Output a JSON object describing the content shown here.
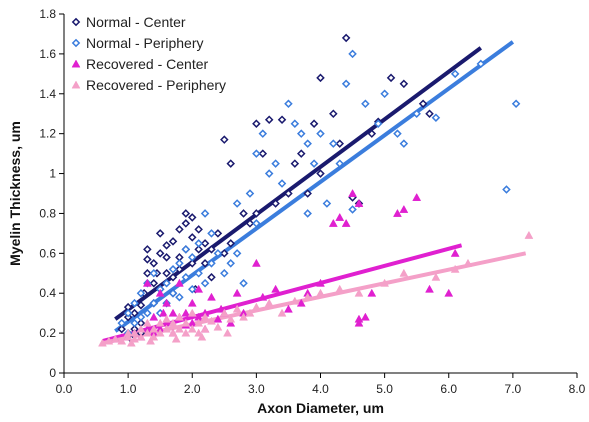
{
  "chart_data": {
    "type": "scatter",
    "title": "",
    "xlabel": "Axon Diameter, um",
    "ylabel": "Myelin Thickness, um",
    "xlim": [
      0,
      8
    ],
    "ylim": [
      0,
      1.8
    ],
    "x_ticks": [
      "0.0",
      "1.0",
      "2.0",
      "3.0",
      "4.0",
      "5.0",
      "6.0",
      "7.0",
      "8.0"
    ],
    "y_ticks": [
      "0",
      "0.2",
      "0.4",
      "0.6",
      "0.8",
      "1",
      "1.2",
      "1.4",
      "1.6",
      "1.8"
    ],
    "grid": false,
    "legend_position": "top-left",
    "series": [
      {
        "name": "Normal - Center",
        "color": "#1a1a6e",
        "marker": "diamond",
        "trendline": {
          "x": [
            0.8,
            6.5
          ],
          "y": [
            0.27,
            1.63
          ]
        },
        "points": [
          [
            0.9,
            0.22
          ],
          [
            1.0,
            0.28
          ],
          [
            1.0,
            0.33
          ],
          [
            1.1,
            0.22
          ],
          [
            1.1,
            0.3
          ],
          [
            1.2,
            0.25
          ],
          [
            1.2,
            0.34
          ],
          [
            1.3,
            0.5
          ],
          [
            1.3,
            0.57
          ],
          [
            1.3,
            0.62
          ],
          [
            1.4,
            0.45
          ],
          [
            1.4,
            0.55
          ],
          [
            1.5,
            0.6
          ],
          [
            1.5,
            0.7
          ],
          [
            1.5,
            0.42
          ],
          [
            1.6,
            0.5
          ],
          [
            1.6,
            0.64
          ],
          [
            1.6,
            0.58
          ],
          [
            1.7,
            0.48
          ],
          [
            1.7,
            0.66
          ],
          [
            1.8,
            0.52
          ],
          [
            1.8,
            0.72
          ],
          [
            1.8,
            0.58
          ],
          [
            1.9,
            0.62
          ],
          [
            1.9,
            0.75
          ],
          [
            1.9,
            0.8
          ],
          [
            2.0,
            0.55
          ],
          [
            2.0,
            0.68
          ],
          [
            2.0,
            0.78
          ],
          [
            2.1,
            0.62
          ],
          [
            2.1,
            0.72
          ],
          [
            2.2,
            0.65
          ],
          [
            2.2,
            0.55
          ],
          [
            2.3,
            0.62
          ],
          [
            2.4,
            0.7
          ],
          [
            2.5,
            0.6
          ],
          [
            2.5,
            1.17
          ],
          [
            2.6,
            1.05
          ],
          [
            2.6,
            0.65
          ],
          [
            2.8,
            0.8
          ],
          [
            2.9,
            0.75
          ],
          [
            3.0,
            0.8
          ],
          [
            3.0,
            1.25
          ],
          [
            3.1,
            1.1
          ],
          [
            3.2,
            1.27
          ],
          [
            3.3,
            0.85
          ],
          [
            3.4,
            1.27
          ],
          [
            3.5,
            0.9
          ],
          [
            3.6,
            1.05
          ],
          [
            3.7,
            1.1
          ],
          [
            3.8,
            0.9
          ],
          [
            3.9,
            1.25
          ],
          [
            4.0,
            1.48
          ],
          [
            4.0,
            1.0
          ],
          [
            4.2,
            1.3
          ],
          [
            4.3,
            1.15
          ],
          [
            4.4,
            1.68
          ],
          [
            4.5,
            0.88
          ],
          [
            4.6,
            0.85
          ],
          [
            4.8,
            1.2
          ],
          [
            4.9,
            1.26
          ],
          [
            5.1,
            1.48
          ],
          [
            5.3,
            1.45
          ],
          [
            5.6,
            1.35
          ],
          [
            5.7,
            1.3
          ],
          [
            1.05,
            0.17
          ],
          [
            1.2,
            0.2
          ],
          [
            1.25,
            0.4
          ],
          [
            1.4,
            0.35
          ],
          [
            1.7,
            0.4
          ],
          [
            2.05,
            0.42
          ],
          [
            2.3,
            0.48
          ],
          [
            1.45,
            0.5
          ]
        ]
      },
      {
        "name": "Normal - Periphery",
        "color": "#3b7ddd",
        "marker": "diamond",
        "trendline": {
          "x": [
            0.8,
            7.0
          ],
          "y": [
            0.21,
            1.66
          ]
        },
        "points": [
          [
            0.9,
            0.25
          ],
          [
            1.0,
            0.2
          ],
          [
            1.0,
            0.3
          ],
          [
            1.1,
            0.25
          ],
          [
            1.1,
            0.35
          ],
          [
            1.2,
            0.28
          ],
          [
            1.2,
            0.4
          ],
          [
            1.3,
            0.3
          ],
          [
            1.3,
            0.45
          ],
          [
            1.4,
            0.35
          ],
          [
            1.4,
            0.5
          ],
          [
            1.5,
            0.42
          ],
          [
            1.5,
            0.3
          ],
          [
            1.6,
            0.45
          ],
          [
            1.6,
            0.35
          ],
          [
            1.7,
            0.52
          ],
          [
            1.7,
            0.4
          ],
          [
            1.8,
            0.38
          ],
          [
            1.8,
            0.55
          ],
          [
            1.9,
            0.48
          ],
          [
            1.9,
            0.62
          ],
          [
            2.0,
            0.42
          ],
          [
            2.0,
            0.58
          ],
          [
            2.1,
            0.5
          ],
          [
            2.1,
            0.65
          ],
          [
            2.2,
            0.45
          ],
          [
            2.2,
            0.8
          ],
          [
            2.3,
            0.55
          ],
          [
            2.3,
            0.7
          ],
          [
            2.4,
            0.6
          ],
          [
            2.5,
            0.5
          ],
          [
            2.6,
            0.55
          ],
          [
            2.7,
            0.6
          ],
          [
            2.7,
            0.85
          ],
          [
            2.8,
            0.45
          ],
          [
            2.9,
            0.9
          ],
          [
            3.0,
            1.1
          ],
          [
            3.0,
            0.75
          ],
          [
            3.1,
            1.2
          ],
          [
            3.2,
            1.0
          ],
          [
            3.3,
            1.05
          ],
          [
            3.4,
            0.95
          ],
          [
            3.5,
            1.35
          ],
          [
            3.6,
            1.25
          ],
          [
            3.7,
            1.2
          ],
          [
            3.8,
            1.15
          ],
          [
            3.8,
            0.8
          ],
          [
            3.9,
            1.05
          ],
          [
            4.0,
            1.2
          ],
          [
            4.1,
            0.85
          ],
          [
            4.2,
            1.15
          ],
          [
            4.3,
            1.05
          ],
          [
            4.4,
            1.45
          ],
          [
            4.5,
            1.6
          ],
          [
            4.7,
            1.35
          ],
          [
            4.9,
            1.25
          ],
          [
            5.0,
            1.4
          ],
          [
            5.2,
            1.2
          ],
          [
            5.3,
            1.15
          ],
          [
            5.5,
            1.3
          ],
          [
            5.8,
            1.28
          ],
          [
            6.1,
            1.5
          ],
          [
            6.5,
            1.55
          ],
          [
            6.9,
            0.92
          ],
          [
            7.05,
            1.35
          ],
          [
            4.5,
            0.82
          ]
        ]
      },
      {
        "name": "Recovered - Center",
        "color": "#e020d0",
        "marker": "triangle",
        "trendline": {
          "x": [
            0.6,
            6.2
          ],
          "y": [
            0.16,
            0.64
          ]
        },
        "points": [
          [
            0.8,
            0.17
          ],
          [
            1.0,
            0.18
          ],
          [
            1.1,
            0.2
          ],
          [
            1.2,
            0.18
          ],
          [
            1.3,
            0.22
          ],
          [
            1.4,
            0.2
          ],
          [
            1.4,
            0.28
          ],
          [
            1.5,
            0.22
          ],
          [
            1.5,
            0.4
          ],
          [
            1.6,
            0.25
          ],
          [
            1.6,
            0.35
          ],
          [
            1.7,
            0.3
          ],
          [
            1.7,
            0.2
          ],
          [
            1.8,
            0.28
          ],
          [
            1.8,
            0.45
          ],
          [
            1.9,
            0.3
          ],
          [
            1.9,
            0.24
          ],
          [
            2.0,
            0.25
          ],
          [
            2.0,
            0.35
          ],
          [
            2.1,
            0.28
          ],
          [
            2.1,
            0.42
          ],
          [
            2.2,
            0.3
          ],
          [
            2.2,
            0.22
          ],
          [
            2.3,
            0.38
          ],
          [
            2.4,
            0.27
          ],
          [
            2.5,
            0.3
          ],
          [
            2.6,
            0.25
          ],
          [
            2.7,
            0.4
          ],
          [
            2.8,
            0.3
          ],
          [
            3.0,
            0.55
          ],
          [
            3.1,
            0.38
          ],
          [
            3.3,
            0.42
          ],
          [
            3.5,
            0.32
          ],
          [
            3.7,
            0.35
          ],
          [
            3.8,
            0.4
          ],
          [
            4.0,
            0.45
          ],
          [
            4.2,
            0.75
          ],
          [
            4.3,
            0.78
          ],
          [
            4.4,
            0.75
          ],
          [
            4.5,
            0.9
          ],
          [
            4.6,
            0.85
          ],
          [
            4.6,
            0.27
          ],
          [
            4.6,
            0.25
          ],
          [
            4.7,
            0.28
          ],
          [
            4.8,
            0.4
          ],
          [
            5.2,
            0.8
          ],
          [
            5.3,
            0.82
          ],
          [
            5.5,
            0.88
          ],
          [
            5.7,
            0.42
          ],
          [
            6.0,
            0.4
          ],
          [
            6.1,
            0.6
          ],
          [
            1.3,
            0.45
          ],
          [
            1.55,
            0.3
          ],
          [
            2.45,
            0.32
          ]
        ]
      },
      {
        "name": "Recovered - Periphery",
        "color": "#f4a0c8",
        "marker": "triangle",
        "trendline": {
          "x": [
            0.6,
            7.2
          ],
          "y": [
            0.15,
            0.6
          ]
        },
        "points": [
          [
            0.6,
            0.15
          ],
          [
            0.7,
            0.16
          ],
          [
            0.8,
            0.17
          ],
          [
            0.9,
            0.16
          ],
          [
            1.0,
            0.18
          ],
          [
            1.0,
            0.2
          ],
          [
            1.1,
            0.17
          ],
          [
            1.1,
            0.2
          ],
          [
            1.2,
            0.18
          ],
          [
            1.2,
            0.22
          ],
          [
            1.3,
            0.2
          ],
          [
            1.3,
            0.25
          ],
          [
            1.4,
            0.18
          ],
          [
            1.4,
            0.22
          ],
          [
            1.5,
            0.2
          ],
          [
            1.5,
            0.25
          ],
          [
            1.6,
            0.22
          ],
          [
            1.6,
            0.27
          ],
          [
            1.7,
            0.2
          ],
          [
            1.7,
            0.25
          ],
          [
            1.8,
            0.22
          ],
          [
            1.8,
            0.28
          ],
          [
            1.9,
            0.25
          ],
          [
            1.9,
            0.2
          ],
          [
            2.0,
            0.22
          ],
          [
            2.0,
            0.3
          ],
          [
            2.1,
            0.25
          ],
          [
            2.1,
            0.2
          ],
          [
            2.2,
            0.28
          ],
          [
            2.2,
            0.22
          ],
          [
            2.3,
            0.26
          ],
          [
            2.4,
            0.23
          ],
          [
            2.5,
            0.3
          ],
          [
            2.6,
            0.27
          ],
          [
            2.7,
            0.32
          ],
          [
            2.8,
            0.28
          ],
          [
            2.9,
            0.3
          ],
          [
            3.0,
            0.33
          ],
          [
            3.2,
            0.35
          ],
          [
            3.4,
            0.3
          ],
          [
            3.6,
            0.36
          ],
          [
            3.8,
            0.38
          ],
          [
            4.0,
            0.4
          ],
          [
            4.3,
            0.42
          ],
          [
            4.6,
            0.4
          ],
          [
            5.0,
            0.45
          ],
          [
            5.3,
            0.5
          ],
          [
            5.8,
            0.48
          ],
          [
            6.1,
            0.52
          ],
          [
            6.3,
            0.55
          ],
          [
            7.25,
            0.69
          ],
          [
            1.05,
            0.15
          ],
          [
            1.35,
            0.16
          ],
          [
            1.75,
            0.17
          ],
          [
            2.15,
            0.18
          ],
          [
            2.55,
            0.2
          ]
        ]
      }
    ]
  }
}
